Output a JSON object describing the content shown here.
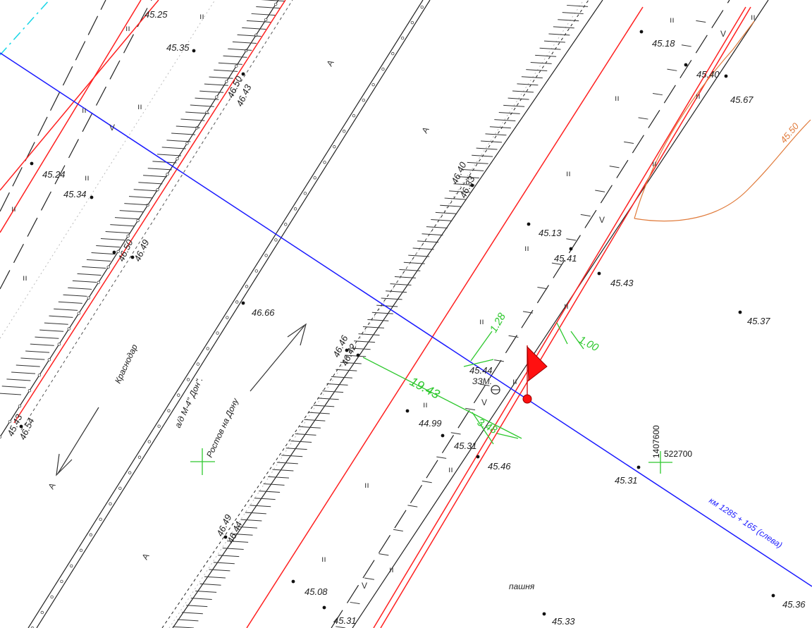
{
  "map": {
    "chainage_label": "км 1285 + 165 (слева)",
    "contour_label": "45.50",
    "place_labels": {
      "krasnodar": "Краснодар",
      "road": "а/д М-4\" Дон\".",
      "rostov": "Ростов на Дону",
      "field": "пашня",
      "zam": "ЗЗМ."
    },
    "coords": {
      "north": "1407600",
      "east": "522700"
    },
    "dimensions": {
      "d1": "1.28",
      "d2": "1.00",
      "d3": "19.43",
      "d4": "3.48"
    },
    "elevations": [
      "45.25",
      "45.35",
      "46.50",
      "46.43",
      "45.24",
      "45.34",
      "46.50",
      "46.49",
      "45.43",
      "46.54",
      "46.66",
      "45.18",
      "45.40",
      "45.67",
      "46.40",
      "46.33",
      "45.13",
      "45.41",
      "45.43",
      "45.37",
      "46.46",
      "46.42",
      "45.44",
      "44.99",
      "45.31",
      "45.46",
      "45.31",
      "46.49",
      "46.44",
      "45.08",
      "45.31",
      "45.33",
      "45.36"
    ],
    "symbol_labels": {
      "a": "А",
      "grass": "ıı",
      "v": "V"
    },
    "colors": {
      "blue_line": "#1a1aff",
      "red_line": "#ff2020",
      "green": "#2ec82e",
      "orange": "#e07a3a",
      "cyan": "#18d6e6"
    }
  }
}
